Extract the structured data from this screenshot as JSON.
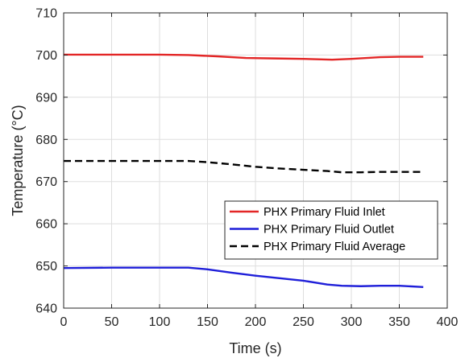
{
  "chart_data": {
    "type": "line",
    "xlabel": "Time (s)",
    "ylabel": "Temperature (°C)",
    "xlim": [
      0,
      400
    ],
    "ylim": [
      640,
      710
    ],
    "xticks": [
      0,
      50,
      100,
      150,
      200,
      250,
      300,
      350,
      400
    ],
    "yticks": [
      640,
      650,
      660,
      670,
      680,
      690,
      700,
      710
    ],
    "grid": true,
    "legend_position": "bottom-right",
    "series": [
      {
        "name": "PHX Primary Fluid Inlet",
        "color": "#e32626",
        "line_style": "solid",
        "x": [
          0,
          50,
          100,
          130,
          160,
          190,
          220,
          250,
          280,
          300,
          330,
          350,
          375
        ],
        "y": [
          700.1,
          700.1,
          700.1,
          700.0,
          699.7,
          699.3,
          699.2,
          699.1,
          698.9,
          699.1,
          699.5,
          699.6,
          699.6
        ]
      },
      {
        "name": "PHX Primary Fluid Outlet",
        "color": "#1f1fd9",
        "line_style": "solid",
        "x": [
          0,
          50,
          100,
          130,
          150,
          175,
          200,
          225,
          250,
          275,
          290,
          310,
          330,
          350,
          375
        ],
        "y": [
          649.5,
          649.6,
          649.6,
          649.6,
          649.2,
          648.4,
          647.7,
          647.1,
          646.5,
          645.6,
          645.3,
          645.2,
          645.3,
          645.3,
          645.0
        ]
      },
      {
        "name": "PHX Primary Fluid Average",
        "color": "#000000",
        "line_style": "dashed",
        "x": [
          0,
          50,
          100,
          130,
          150,
          175,
          200,
          225,
          250,
          275,
          290,
          310,
          330,
          350,
          375
        ],
        "y": [
          674.9,
          674.9,
          674.9,
          674.9,
          674.6,
          674.1,
          673.5,
          673.1,
          672.8,
          672.5,
          672.2,
          672.2,
          672.3,
          672.3,
          672.3
        ]
      }
    ]
  }
}
